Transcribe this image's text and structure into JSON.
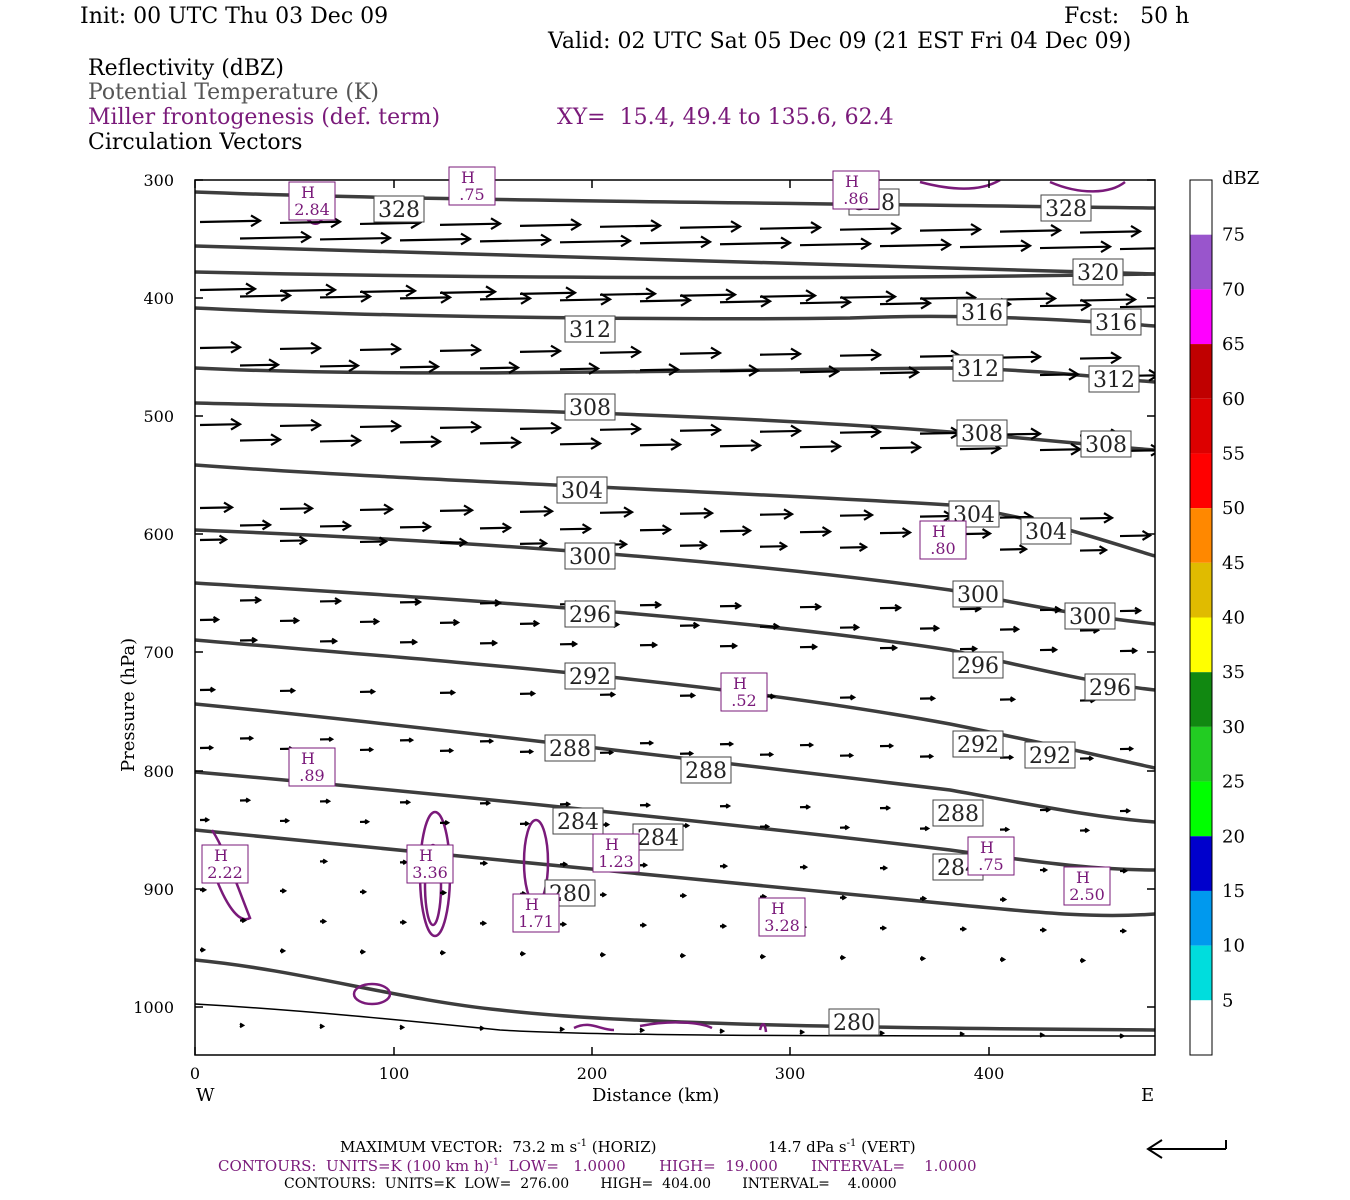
{
  "header": {
    "init": "Init: 00 UTC Thu 03 Dec 09",
    "fcst": "Fcst:   50 h",
    "valid": "Valid: 02 UTC Sat 05 Dec 09 (21 EST Fri 04 Dec 09)"
  },
  "fields": {
    "reflectivity": "Reflectivity (dBZ)",
    "theta": "Potential Temperature (K)",
    "frontogenesis": "Miller frontogenesis (def. term)",
    "xy": "XY=  15.4, 49.4 to 135.6, 62.4",
    "vectors": "Circulation Vectors"
  },
  "axes": {
    "ylabel": "Pressure (hPa)",
    "xlabel": "Distance (km)",
    "west": "W",
    "east": "E",
    "yticks": [
      "300",
      "400",
      "500",
      "600",
      "700",
      "800",
      "900",
      "1000"
    ],
    "xticks": [
      "0",
      "100",
      "200",
      "300",
      "400"
    ]
  },
  "colorbar": {
    "unit": "dBZ",
    "labels": [
      "75",
      "70",
      "65",
      "60",
      "55",
      "50",
      "45",
      "40",
      "35",
      "30",
      "25",
      "20",
      "15",
      "10",
      "5"
    ],
    "colors": [
      "#ffffff",
      "#9955cc",
      "#ff00ff",
      "#c00000",
      "#dd0000",
      "#ff0000",
      "#ff8800",
      "#e0bb00",
      "#ffff00",
      "#118811",
      "#22cc22",
      "#00ff00",
      "#0000cc",
      "#0099ee",
      "#00dddd",
      "#ffffff"
    ]
  },
  "theta_labels": [
    {
      "v": "328"
    },
    {
      "v": "328"
    },
    {
      "v": "328"
    },
    {
      "v": "320"
    },
    {
      "v": "316"
    },
    {
      "v": "316"
    },
    {
      "v": "312"
    },
    {
      "v": "312"
    },
    {
      "v": "312"
    },
    {
      "v": "308"
    },
    {
      "v": "308"
    },
    {
      "v": "308"
    },
    {
      "v": "304"
    },
    {
      "v": "304"
    },
    {
      "v": "304"
    },
    {
      "v": "300"
    },
    {
      "v": "300"
    },
    {
      "v": "300"
    },
    {
      "v": "296"
    },
    {
      "v": "296"
    },
    {
      "v": "296"
    },
    {
      "v": "292"
    },
    {
      "v": "292"
    },
    {
      "v": "292"
    },
    {
      "v": "288"
    },
    {
      "v": "288"
    },
    {
      "v": "288"
    },
    {
      "v": "284"
    },
    {
      "v": "284"
    },
    {
      "v": "284"
    },
    {
      "v": "280"
    },
    {
      "v": "280"
    }
  ],
  "frontogenesis_maxima": [
    {
      "v": "2.84"
    },
    {
      "v": ".75"
    },
    {
      "v": ".86"
    },
    {
      "v": ".80"
    },
    {
      "v": ".52"
    },
    {
      "v": ".89"
    },
    {
      "v": "2.22"
    },
    {
      "v": "3.36"
    },
    {
      "v": "1.71"
    },
    {
      "v": "1.23"
    },
    {
      "v": "3.28"
    },
    {
      "v": ".75"
    },
    {
      "v": "2.50"
    }
  ],
  "footer": {
    "max_vector": "MAXIMUM VECTOR:  73.2 m s",
    "max_vector_sup": "-1",
    "max_vector_horiz": " (HORIZ)",
    "vert": "14.7 dPa s",
    "vert_sup": "-1",
    "vert_tail": " (VERT)",
    "contours1_a": "CONTOURS:  UNITS=K (100 km h)",
    "contours1_sup": "-1",
    "contours1_b": "  LOW=   1.0000       HIGH=  19.000       INTERVAL=    1.0000",
    "contours2": "CONTOURS:  UNITS=K  LOW=  276.00       HIGH=  404.00       INTERVAL=    4.0000"
  }
}
